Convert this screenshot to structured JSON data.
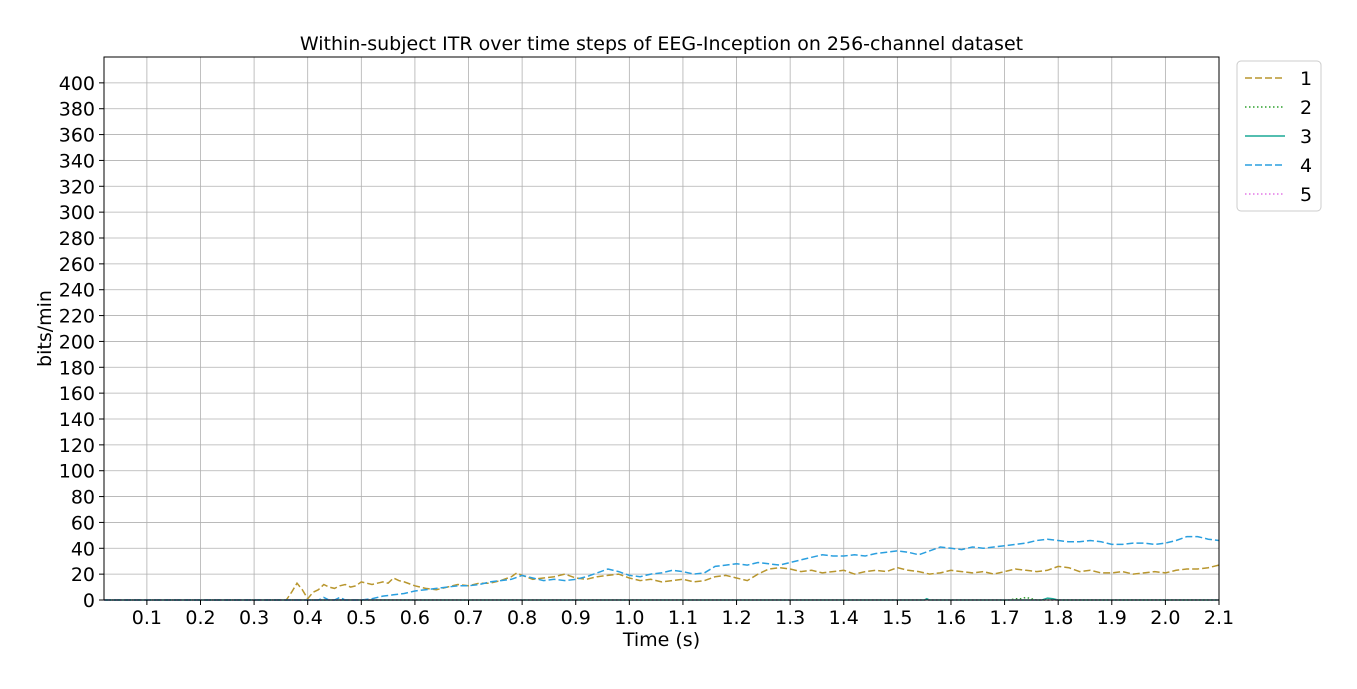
{
  "chart_data": {
    "type": "line",
    "title": "Within-subject ITR over time steps of EEG-Inception on 256-channel dataset",
    "xlabel": "Time (s)",
    "ylabel": "bits/min",
    "xlim": [
      0.02,
      2.1
    ],
    "ylim": [
      0,
      420
    ],
    "x_ticks": [
      "0.1",
      "0.2",
      "0.3",
      "0.4",
      "0.5",
      "0.6",
      "0.7",
      "0.8",
      "0.9",
      "1.0",
      "1.1",
      "1.2",
      "1.3",
      "1.4",
      "1.5",
      "1.6",
      "1.7",
      "1.8",
      "1.9",
      "2.0",
      "2.1"
    ],
    "y_ticks": [
      "0",
      "20",
      "40",
      "60",
      "80",
      "100",
      "120",
      "140",
      "160",
      "180",
      "200",
      "220",
      "240",
      "260",
      "280",
      "300",
      "320",
      "340",
      "360",
      "380",
      "400"
    ],
    "grid": true,
    "legend_position": "outside-top-right",
    "series": [
      {
        "name": "1",
        "color": "#b8962e",
        "dash": "dashed",
        "points": [
          [
            0.02,
            0
          ],
          [
            0.36,
            0
          ],
          [
            0.37,
            6
          ],
          [
            0.38,
            13
          ],
          [
            0.39,
            8
          ],
          [
            0.4,
            1
          ],
          [
            0.41,
            6
          ],
          [
            0.42,
            8
          ],
          [
            0.43,
            12
          ],
          [
            0.44,
            10
          ],
          [
            0.45,
            9
          ],
          [
            0.46,
            11
          ],
          [
            0.47,
            12
          ],
          [
            0.48,
            10
          ],
          [
            0.49,
            11
          ],
          [
            0.5,
            14
          ],
          [
            0.51,
            13
          ],
          [
            0.52,
            12
          ],
          [
            0.53,
            13
          ],
          [
            0.54,
            14
          ],
          [
            0.55,
            13
          ],
          [
            0.56,
            17
          ],
          [
            0.57,
            15
          ],
          [
            0.58,
            14
          ],
          [
            0.6,
            11
          ],
          [
            0.62,
            9
          ],
          [
            0.64,
            8
          ],
          [
            0.66,
            10
          ],
          [
            0.68,
            12
          ],
          [
            0.7,
            11
          ],
          [
            0.72,
            13
          ],
          [
            0.74,
            13
          ],
          [
            0.76,
            15
          ],
          [
            0.78,
            18
          ],
          [
            0.79,
            21
          ],
          [
            0.8,
            19
          ],
          [
            0.82,
            16
          ],
          [
            0.84,
            17
          ],
          [
            0.86,
            18
          ],
          [
            0.88,
            20
          ],
          [
            0.9,
            17
          ],
          [
            0.92,
            16
          ],
          [
            0.94,
            18
          ],
          [
            0.96,
            19
          ],
          [
            0.98,
            20
          ],
          [
            1.0,
            17
          ],
          [
            1.02,
            15
          ],
          [
            1.04,
            16
          ],
          [
            1.06,
            14
          ],
          [
            1.08,
            15
          ],
          [
            1.1,
            16
          ],
          [
            1.12,
            14
          ],
          [
            1.14,
            15
          ],
          [
            1.16,
            18
          ],
          [
            1.18,
            19
          ],
          [
            1.2,
            17
          ],
          [
            1.22,
            15
          ],
          [
            1.24,
            20
          ],
          [
            1.26,
            24
          ],
          [
            1.28,
            25
          ],
          [
            1.3,
            24
          ],
          [
            1.32,
            22
          ],
          [
            1.34,
            23
          ],
          [
            1.36,
            21
          ],
          [
            1.38,
            22
          ],
          [
            1.4,
            23
          ],
          [
            1.42,
            20
          ],
          [
            1.44,
            22
          ],
          [
            1.46,
            23
          ],
          [
            1.48,
            22
          ],
          [
            1.5,
            25
          ],
          [
            1.52,
            23
          ],
          [
            1.54,
            22
          ],
          [
            1.56,
            20
          ],
          [
            1.58,
            21
          ],
          [
            1.6,
            23
          ],
          [
            1.62,
            22
          ],
          [
            1.64,
            21
          ],
          [
            1.66,
            22
          ],
          [
            1.68,
            20
          ],
          [
            1.7,
            22
          ],
          [
            1.72,
            24
          ],
          [
            1.74,
            23
          ],
          [
            1.76,
            22
          ],
          [
            1.78,
            23
          ],
          [
            1.8,
            26
          ],
          [
            1.82,
            25
          ],
          [
            1.84,
            22
          ],
          [
            1.86,
            23
          ],
          [
            1.88,
            21
          ],
          [
            1.9,
            21
          ],
          [
            1.92,
            22
          ],
          [
            1.94,
            20
          ],
          [
            1.96,
            21
          ],
          [
            1.98,
            22
          ],
          [
            2.0,
            21
          ],
          [
            2.02,
            23
          ],
          [
            2.04,
            24
          ],
          [
            2.06,
            24
          ],
          [
            2.08,
            25
          ],
          [
            2.1,
            27
          ]
        ]
      },
      {
        "name": "2",
        "color": "#2ca02c",
        "dash": "dotted",
        "points": [
          [
            0.02,
            0
          ],
          [
            1.71,
            0
          ],
          [
            1.72,
            1
          ],
          [
            1.73,
            1
          ],
          [
            1.74,
            2
          ],
          [
            1.75,
            1
          ],
          [
            1.76,
            0
          ],
          [
            2.1,
            0
          ]
        ]
      },
      {
        "name": "3",
        "color": "#1aa896",
        "dash": "solid",
        "points": [
          [
            0.02,
            0
          ],
          [
            1.55,
            0
          ],
          [
            1.555,
            1
          ],
          [
            1.56,
            0
          ],
          [
            1.77,
            0
          ],
          [
            1.78,
            1.5
          ],
          [
            1.79,
            1
          ],
          [
            1.8,
            0
          ],
          [
            2.1,
            0
          ]
        ]
      },
      {
        "name": "4",
        "color": "#2a9fdf",
        "dash": "dashed",
        "points": [
          [
            0.02,
            0
          ],
          [
            0.42,
            0
          ],
          [
            0.43,
            2
          ],
          [
            0.44,
            0
          ],
          [
            0.45,
            0
          ],
          [
            0.46,
            2
          ],
          [
            0.47,
            0
          ],
          [
            0.5,
            0
          ],
          [
            0.52,
            1
          ],
          [
            0.54,
            3
          ],
          [
            0.56,
            4
          ],
          [
            0.58,
            5
          ],
          [
            0.6,
            7
          ],
          [
            0.62,
            8
          ],
          [
            0.64,
            9
          ],
          [
            0.66,
            10
          ],
          [
            0.68,
            11
          ],
          [
            0.7,
            11
          ],
          [
            0.72,
            12
          ],
          [
            0.74,
            14
          ],
          [
            0.76,
            15
          ],
          [
            0.78,
            16
          ],
          [
            0.8,
            19
          ],
          [
            0.82,
            17
          ],
          [
            0.84,
            15
          ],
          [
            0.86,
            16
          ],
          [
            0.88,
            15
          ],
          [
            0.9,
            16
          ],
          [
            0.92,
            18
          ],
          [
            0.94,
            21
          ],
          [
            0.96,
            24
          ],
          [
            0.98,
            22
          ],
          [
            1.0,
            19
          ],
          [
            1.02,
            18
          ],
          [
            1.04,
            20
          ],
          [
            1.06,
            21
          ],
          [
            1.08,
            23
          ],
          [
            1.1,
            22
          ],
          [
            1.12,
            20
          ],
          [
            1.14,
            21
          ],
          [
            1.16,
            26
          ],
          [
            1.18,
            27
          ],
          [
            1.2,
            28
          ],
          [
            1.22,
            27
          ],
          [
            1.24,
            29
          ],
          [
            1.26,
            28
          ],
          [
            1.28,
            27
          ],
          [
            1.3,
            29
          ],
          [
            1.32,
            31
          ],
          [
            1.34,
            33
          ],
          [
            1.36,
            35
          ],
          [
            1.38,
            34
          ],
          [
            1.4,
            34
          ],
          [
            1.42,
            35
          ],
          [
            1.44,
            34
          ],
          [
            1.46,
            36
          ],
          [
            1.48,
            37
          ],
          [
            1.5,
            38
          ],
          [
            1.52,
            37
          ],
          [
            1.54,
            35
          ],
          [
            1.56,
            38
          ],
          [
            1.58,
            41
          ],
          [
            1.6,
            40
          ],
          [
            1.62,
            39
          ],
          [
            1.64,
            41
          ],
          [
            1.66,
            40
          ],
          [
            1.68,
            41
          ],
          [
            1.7,
            42
          ],
          [
            1.72,
            43
          ],
          [
            1.74,
            44
          ],
          [
            1.76,
            46
          ],
          [
            1.78,
            47
          ],
          [
            1.8,
            46
          ],
          [
            1.82,
            45
          ],
          [
            1.84,
            45
          ],
          [
            1.86,
            46
          ],
          [
            1.88,
            45
          ],
          [
            1.9,
            43
          ],
          [
            1.92,
            43
          ],
          [
            1.94,
            44
          ],
          [
            1.96,
            44
          ],
          [
            1.98,
            43
          ],
          [
            2.0,
            44
          ],
          [
            2.02,
            46
          ],
          [
            2.04,
            49
          ],
          [
            2.06,
            49
          ],
          [
            2.08,
            47
          ],
          [
            2.1,
            46
          ]
        ]
      },
      {
        "name": "5",
        "color": "#e377e6",
        "dash": "dotted",
        "points": [
          [
            0.02,
            0
          ],
          [
            2.1,
            0
          ]
        ]
      }
    ]
  }
}
